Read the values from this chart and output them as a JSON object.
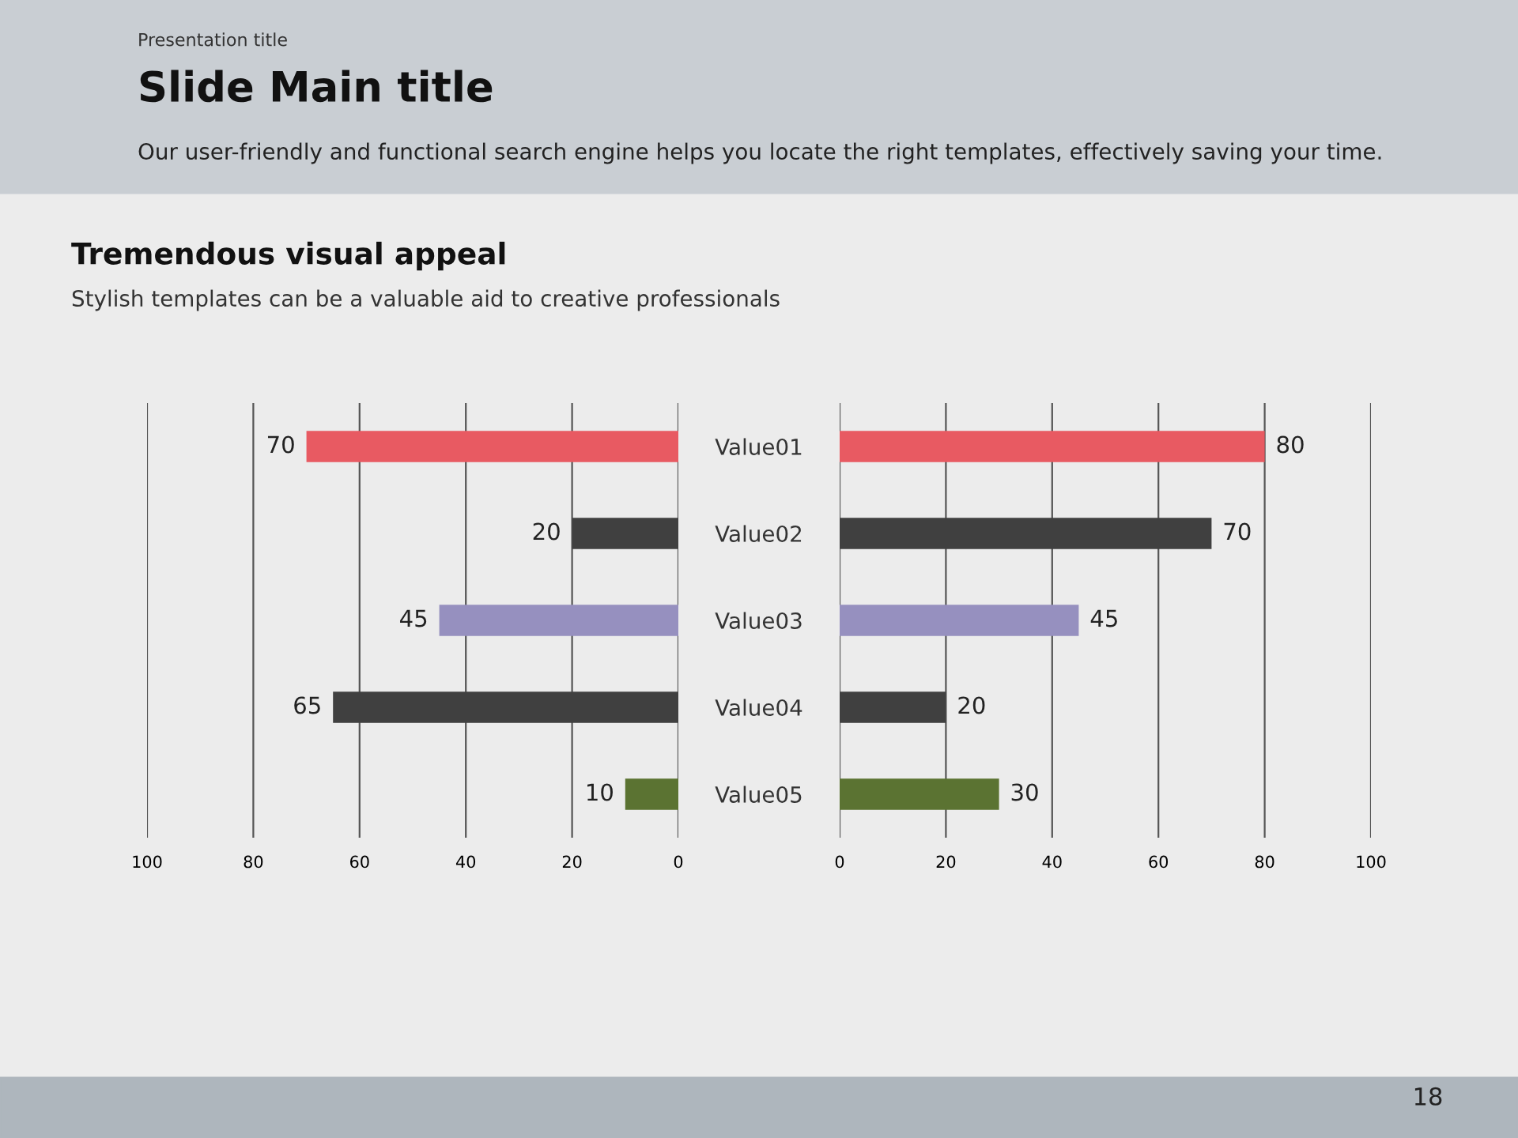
{
  "chart_data": [
    {
      "type": "bar",
      "orientation": "horizontal",
      "title": "Tremendous visual appeal",
      "subtitle": "Stylish templates can be a valuable aid to creative professionals",
      "annotations": [
        "Presentation title",
        "Slide Main title",
        "Our user-friendly and functional search engine helps you locate the right templates, effectively saving your time.",
        "18"
      ],
      "categories": [
        null,
        null,
        null,
        null,
        null
      ],
      "values": [
        70,
        20,
        45,
        65,
        10
      ],
      "colors": [
        "#e85a62",
        "#404040",
        "#9690bf",
        "#404040",
        "#5b7332"
      ],
      "xlim": [
        100,
        0
      ],
      "xticks": [
        100,
        80,
        60,
        40,
        20,
        0
      ],
      "grid": "x",
      "data_labels": true,
      "tick_labels": "x"
    },
    {
      "type": "bar",
      "orientation": "horizontal",
      "categories": [
        "Value01",
        "Value02",
        "Value03",
        "Value04",
        "Value05"
      ],
      "values": [
        80,
        70,
        45,
        20,
        30
      ],
      "colors": [
        "#e85a62",
        "#404040",
        "#9690bf",
        "#404040",
        "#5b7332"
      ],
      "xlim": [
        0,
        100
      ],
      "xticks": [
        0,
        20,
        40,
        60,
        80,
        100
      ],
      "grid": "x",
      "data_labels": true
    }
  ]
}
